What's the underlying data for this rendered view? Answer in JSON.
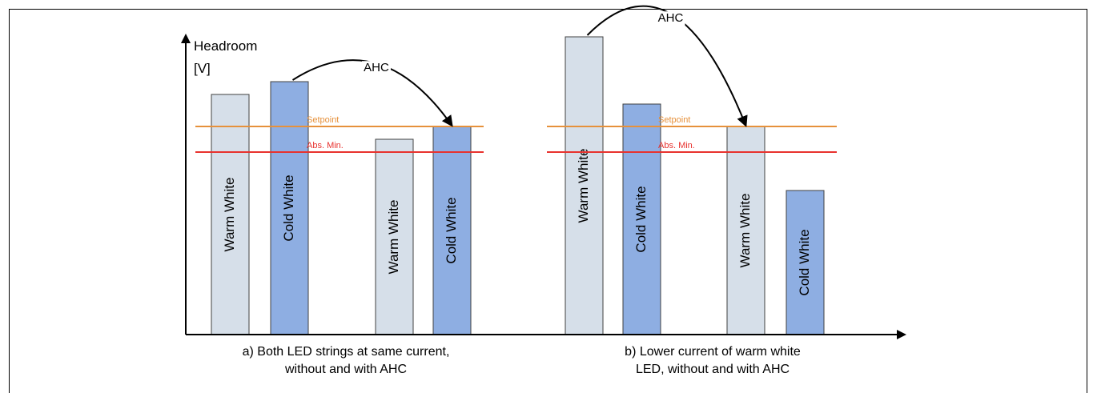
{
  "y_axis": {
    "label_line1": "Headroom",
    "label_line2": "[V]"
  },
  "annotations": {
    "arrow_label": "AHC",
    "setpoint_label": "Setpoint",
    "absmin_label": "Abs. Min."
  },
  "captions": {
    "a_line1": "a)  Both LED strings at same current,",
    "a_line2": "without and with AHC",
    "b_line1": "b)  Lower current of warm white",
    "b_line2": "LED, without and with AHC"
  },
  "colors": {
    "warm_white_fill": "#d6dfe9",
    "cold_white_fill": "#8eaee2",
    "bar_stroke": "#404040",
    "setpoint_line": "#e6913b",
    "absmin_line": "#e8322e",
    "axis": "#000000"
  },
  "chart_data": {
    "type": "bar",
    "units": "V (relative headroom)",
    "levels": {
      "setpoint": 0.65,
      "abs_min": 0.57
    },
    "panels": [
      {
        "caption": "a)  Both LED strings at same current, without and with AHC",
        "bars": [
          {
            "label": "Warm White",
            "value": 0.75,
            "kind": "warm"
          },
          {
            "label": "Cold White",
            "value": 0.79,
            "kind": "cold"
          },
          {
            "label": "Warm White",
            "value": 0.61,
            "kind": "warm"
          },
          {
            "label": "Cold White",
            "value": 0.65,
            "kind": "cold"
          }
        ],
        "arrow": {
          "from_bar": 1,
          "to_bar": 3,
          "label": "AHC"
        }
      },
      {
        "caption": "b)  Lower current of warm white LED, without and with AHC",
        "bars": [
          {
            "label": "Warm White",
            "value": 0.93,
            "kind": "warm"
          },
          {
            "label": "Cold White",
            "value": 0.72,
            "kind": "cold"
          },
          {
            "label": "Warm White",
            "value": 0.65,
            "kind": "warm"
          },
          {
            "label": "Cold White",
            "value": 0.45,
            "kind": "cold"
          }
        ],
        "arrow": {
          "from_bar": 0,
          "to_bar": 2,
          "label": "AHC"
        }
      }
    ]
  }
}
